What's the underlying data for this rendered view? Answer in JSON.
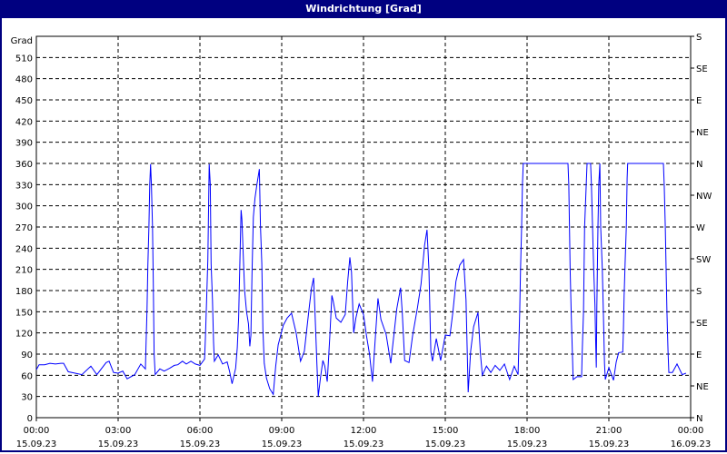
{
  "window": {
    "title": "Windrichtung [Grad]"
  },
  "chart_data": {
    "type": "line",
    "title": "Windrichtung [Grad]",
    "ylabel": "Grad",
    "ylim": [
      0,
      540
    ],
    "yticks": [
      0,
      30,
      60,
      90,
      120,
      150,
      180,
      210,
      240,
      270,
      300,
      330,
      360,
      390,
      420,
      450,
      480,
      510
    ],
    "right_axis": {
      "ticks": [
        0,
        45,
        90,
        135,
        180,
        225,
        270,
        315,
        360,
        405,
        450,
        495,
        540
      ],
      "labels": [
        "N",
        "NE",
        "E",
        "SE",
        "S",
        "SW",
        "W",
        "NW",
        "N",
        "NE",
        "E",
        "SE",
        "S"
      ]
    },
    "xlim_hours": [
      0,
      24
    ],
    "xticks": [
      {
        "time": "00:00",
        "date": "15.09.23"
      },
      {
        "time": "03:00",
        "date": "15.09.23"
      },
      {
        "time": "06:00",
        "date": "15.09.23"
      },
      {
        "time": "09:00",
        "date": "15.09.23"
      },
      {
        "time": "12:00",
        "date": "15.09.23"
      },
      {
        "time": "15:00",
        "date": "15.09.23"
      },
      {
        "time": "18:00",
        "date": "15.09.23"
      },
      {
        "time": "21:00",
        "date": "15.09.23"
      },
      {
        "time": "00:00",
        "date": "16.09.23"
      }
    ],
    "grid": true,
    "line_color": "#0000ff",
    "series": [
      {
        "x_hours": [
          0.0,
          0.1,
          0.3,
          0.5,
          0.7,
          0.9,
          1.0,
          1.17,
          1.67,
          2.0,
          2.22,
          2.56,
          2.67,
          2.83,
          3.0,
          3.17,
          3.33,
          3.61,
          3.83,
          4.0,
          4.02,
          4.06,
          4.09,
          4.13,
          4.16,
          4.19,
          4.22,
          4.26,
          4.29,
          4.32,
          4.36,
          4.53,
          4.69,
          4.89,
          5.06,
          5.19,
          5.36,
          5.5,
          5.67,
          5.83,
          6.0,
          6.17,
          6.2,
          6.24,
          6.29,
          6.31,
          6.34,
          6.38,
          6.41,
          6.46,
          6.5,
          6.53,
          6.67,
          6.83,
          7.0,
          7.09,
          7.18,
          7.31,
          7.37,
          7.42,
          7.47,
          7.51,
          7.54,
          7.59,
          7.64,
          7.71,
          7.78,
          7.83,
          7.87,
          7.91,
          7.96,
          8.02,
          8.09,
          8.16,
          8.18,
          8.22,
          8.27,
          8.31,
          8.36,
          8.44,
          8.56,
          8.69,
          8.78,
          8.87,
          9.06,
          9.2,
          9.36,
          9.53,
          9.69,
          9.83,
          9.98,
          10.09,
          10.17,
          10.22,
          10.29,
          10.34,
          10.42,
          10.51,
          10.58,
          10.67,
          10.76,
          10.84,
          10.89,
          11.0,
          11.17,
          11.33,
          11.42,
          11.5,
          11.56,
          11.64,
          11.72,
          11.84,
          12.0,
          12.11,
          12.22,
          12.33,
          12.39,
          12.53,
          12.64,
          12.83,
          13.0,
          13.22,
          13.36,
          13.42,
          13.51,
          13.67,
          13.8,
          13.98,
          14.11,
          14.24,
          14.33,
          14.4,
          14.47,
          14.53,
          14.67,
          14.83,
          15.0,
          15.17,
          15.28,
          15.39,
          15.53,
          15.67,
          15.76,
          15.84,
          15.93,
          16.04,
          16.2,
          16.29,
          16.36,
          16.51,
          16.67,
          16.83,
          17.0,
          17.17,
          17.36,
          17.53,
          17.67,
          17.69,
          17.73,
          17.76,
          17.8,
          17.83,
          17.86,
          19.5,
          19.53,
          19.58,
          19.62,
          19.67,
          19.69,
          19.83,
          20.0,
          20.02,
          20.07,
          20.11,
          20.17,
          20.2,
          20.33,
          20.36,
          20.4,
          20.44,
          20.49,
          20.52,
          20.54,
          20.56,
          20.58,
          20.6,
          20.63,
          20.67,
          20.7,
          20.76,
          20.8,
          20.84,
          20.87,
          21.0,
          21.17,
          21.27,
          21.36,
          21.51,
          21.53,
          21.56,
          21.6,
          21.64,
          21.67,
          21.69,
          23.0,
          23.03,
          23.07,
          23.1,
          23.13,
          23.17,
          23.2,
          23.33,
          23.5,
          23.69,
          23.83
        ],
        "values": [
          68,
          75,
          75,
          77,
          76,
          77,
          77,
          65,
          61,
          73,
          61,
          78,
          80,
          64,
          63,
          66,
          55,
          61,
          76,
          69,
          99,
          154,
          215,
          272,
          330,
          359,
          330,
          272,
          190,
          90,
          61,
          69,
          66,
          70,
          74,
          75,
          80,
          76,
          80,
          76,
          74,
          83,
          112,
          160,
          223,
          276,
          359,
          330,
          218,
          167,
          107,
          80,
          89,
          76,
          79,
          65,
          48,
          70,
          99,
          142,
          228,
          294,
          281,
          229,
          180,
          150,
          133,
          101,
          117,
          203,
          284,
          311,
          330,
          347,
          352,
          272,
          218,
          125,
          77,
          56,
          41,
          33,
          73,
          103,
          131,
          141,
          148,
          120,
          80,
          94,
          146,
          183,
          198,
          150,
          77,
          30,
          56,
          81,
          73,
          51,
          112,
          173,
          165,
          141,
          135,
          146,
          193,
          227,
          206,
          120,
          141,
          161,
          146,
          116,
          90,
          51,
          88,
          169,
          139,
          118,
          77,
          154,
          184,
          150,
          81,
          78,
          116,
          156,
          189,
          244,
          266,
          210,
          94,
          80,
          112,
          81,
          117,
          116,
          150,
          193,
          216,
          224,
          167,
          36,
          94,
          129,
          149,
          90,
          60,
          73,
          64,
          74,
          67,
          76,
          54,
          73,
          61,
          90,
          150,
          210,
          270,
          330,
          360,
          360,
          330,
          210,
          146,
          81,
          54,
          58,
          58,
          90,
          150,
          270,
          330,
          360,
          360,
          330,
          272,
          215,
          159,
          101,
          71,
          159,
          215,
          270,
          330,
          360,
          270,
          210,
          146,
          77,
          54,
          71,
          53,
          79,
          92,
          93,
          118,
          173,
          224,
          270,
          339,
          360,
          360,
          330,
          270,
          210,
          150,
          94,
          64,
          64,
          76,
          61,
          63
        ]
      }
    ]
  }
}
